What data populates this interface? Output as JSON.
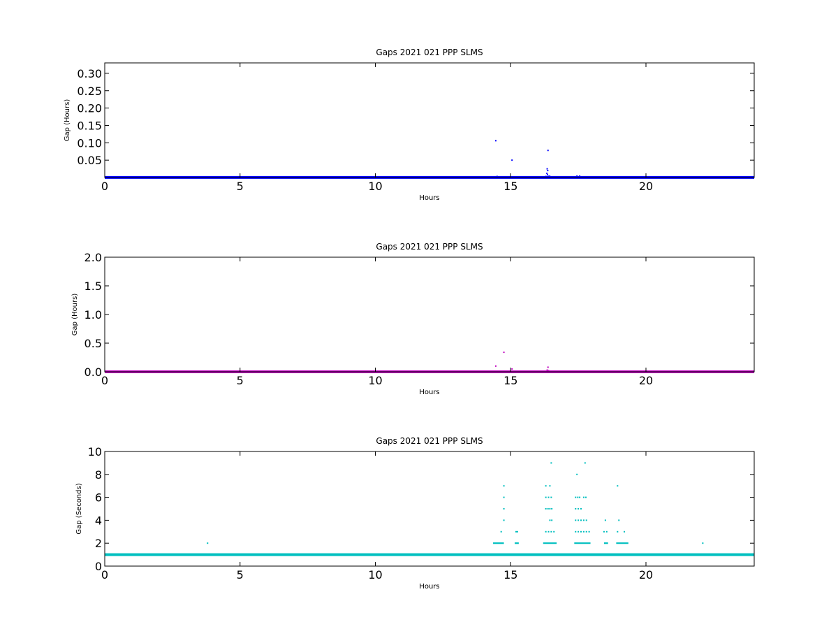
{
  "chart_data": [
    {
      "type": "scatter",
      "title": "Gaps 2021 021 PPP  SLMS",
      "xlabel": "Hours",
      "ylabel": "Gap (Hours)",
      "xlim": [
        0,
        24
      ],
      "ylim": [
        0,
        0.33
      ],
      "xticks": [
        "0",
        "5",
        "10",
        "15",
        "20"
      ],
      "yticks": [
        "0.05",
        "0.10",
        "0.15",
        "0.20",
        "0.25",
        "0.30"
      ],
      "grid": false,
      "color": "#0000ff",
      "baseline": {
        "value": 0.0003,
        "from": 0,
        "to": 24
      },
      "points": [
        [
          14.45,
          0.106
        ],
        [
          15.05,
          0.05
        ],
        [
          16.38,
          0.078
        ],
        [
          16.35,
          0.025
        ],
        [
          16.37,
          0.02
        ],
        [
          16.34,
          0.012
        ],
        [
          16.36,
          0.008
        ],
        [
          16.42,
          0.004
        ],
        [
          14.6,
          0.002
        ],
        [
          14.9,
          0.002
        ],
        [
          15.1,
          0.002
        ],
        [
          16.3,
          0.003
        ],
        [
          17.45,
          0.004
        ],
        [
          17.55,
          0.004
        ],
        [
          14.5,
          0.003
        ],
        [
          16.45,
          0.003
        ]
      ]
    },
    {
      "type": "scatter",
      "title": "Gaps 2021 021 PPP  SLMS",
      "xlabel": "Hours",
      "ylabel": "Gap (Hours)",
      "xlim": [
        0,
        24
      ],
      "ylim": [
        0,
        2.0
      ],
      "xticks": [
        "0",
        "5",
        "10",
        "15",
        "20"
      ],
      "yticks": [
        "0.0",
        "0.5",
        "1.0",
        "1.5",
        "2.0"
      ],
      "grid": false,
      "color": "#bf00bf",
      "baseline": {
        "value": 0.0003,
        "from": 0,
        "to": 24
      },
      "points": [
        [
          14.75,
          0.34
        ],
        [
          14.45,
          0.1
        ],
        [
          15.05,
          0.05
        ],
        [
          16.38,
          0.08
        ],
        [
          16.35,
          0.03
        ],
        [
          16.4,
          0.02
        ],
        [
          14.6,
          0.01
        ],
        [
          15.1,
          0.01
        ]
      ]
    },
    {
      "type": "scatter",
      "title": "Gaps 2021 021 PPP  SLMS",
      "xlabel": "Hours",
      "ylabel": "Gap (Seconds)",
      "xlim": [
        0,
        24
      ],
      "ylim": [
        0,
        10
      ],
      "xticks": [
        "0",
        "5",
        "10",
        "15",
        "20"
      ],
      "yticks": [
        "0",
        "2",
        "4",
        "6",
        "8",
        "10"
      ],
      "grid": false,
      "color": "#00bfbf",
      "baseline": {
        "value": 1,
        "from": 0,
        "to": 24
      },
      "points": [
        [
          3.8,
          2
        ],
        [
          22.1,
          2
        ],
        [
          14.75,
          7
        ],
        [
          14.75,
          6
        ],
        [
          14.75,
          5
        ],
        [
          14.75,
          4
        ],
        [
          14.65,
          3
        ],
        [
          15.2,
          3
        ],
        [
          15.25,
          3
        ],
        [
          16.5,
          9
        ],
        [
          16.3,
          7
        ],
        [
          16.45,
          7
        ],
        [
          16.3,
          6
        ],
        [
          16.4,
          6
        ],
        [
          16.5,
          6
        ],
        [
          16.3,
          5
        ],
        [
          16.38,
          5
        ],
        [
          16.45,
          5
        ],
        [
          16.52,
          5
        ],
        [
          16.45,
          4
        ],
        [
          16.52,
          4
        ],
        [
          16.3,
          3
        ],
        [
          16.4,
          3
        ],
        [
          16.5,
          3
        ],
        [
          16.6,
          3
        ],
        [
          17.45,
          8
        ],
        [
          17.75,
          9
        ],
        [
          17.4,
          6
        ],
        [
          17.48,
          6
        ],
        [
          17.55,
          6
        ],
        [
          17.7,
          6
        ],
        [
          17.78,
          6
        ],
        [
          17.4,
          5
        ],
        [
          17.5,
          5
        ],
        [
          17.6,
          5
        ],
        [
          17.4,
          4
        ],
        [
          17.5,
          4
        ],
        [
          17.6,
          4
        ],
        [
          17.7,
          4
        ],
        [
          17.8,
          4
        ],
        [
          17.4,
          3
        ],
        [
          17.5,
          3
        ],
        [
          17.6,
          3
        ],
        [
          17.7,
          3
        ],
        [
          17.8,
          3
        ],
        [
          17.9,
          3
        ],
        [
          18.5,
          4
        ],
        [
          18.45,
          3
        ],
        [
          18.55,
          3
        ],
        [
          18.95,
          7
        ],
        [
          19.0,
          4
        ],
        [
          18.95,
          3
        ],
        [
          19.2,
          3
        ]
      ],
      "bands": [
        {
          "y": 2,
          "from": 14.35,
          "to": 14.75
        },
        {
          "y": 2,
          "from": 15.15,
          "to": 15.3
        },
        {
          "y": 2,
          "from": 16.2,
          "to": 16.7
        },
        {
          "y": 2,
          "from": 17.35,
          "to": 17.95
        },
        {
          "y": 2,
          "from": 18.45,
          "to": 18.6
        },
        {
          "y": 2,
          "from": 18.9,
          "to": 19.35
        }
      ]
    }
  ]
}
